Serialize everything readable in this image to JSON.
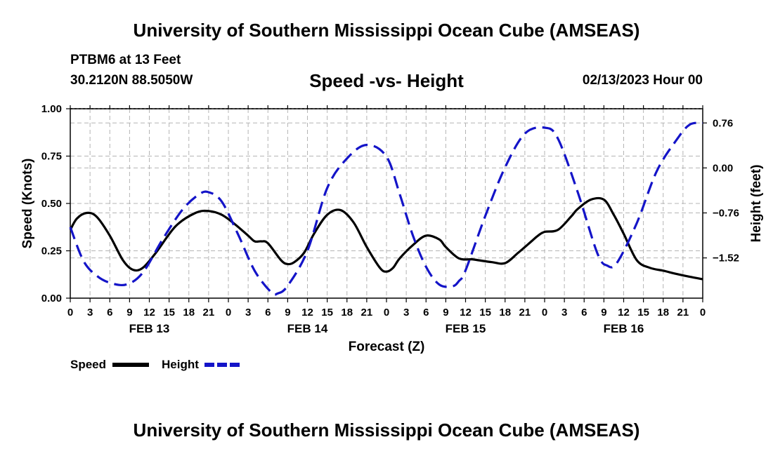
{
  "header": {
    "title": "University of Southern Mississippi Ocean Cube (AMSEAS)",
    "station": "PTBM6 at 13 Feet",
    "coordinates": "30.2120N  88.5050W",
    "chart_title": "Speed -vs- Height",
    "datetime": "02/13/2023 Hour 00"
  },
  "footer": {
    "title": "University of Southern Mississippi Ocean Cube (AMSEAS)"
  },
  "legend": {
    "speed_label": "Speed",
    "height_label": "Height"
  },
  "colors": {
    "speed": "#000000",
    "height": "#1414c8",
    "grid": "#b4b4b4"
  },
  "chart_data": {
    "type": "line",
    "title": "Speed -vs- Height",
    "xlabel": "Forecast (Z)",
    "ylabel_left": "Speed (Knots)",
    "ylabel_right": "Height (feet)",
    "x_range_hours": [
      0,
      96
    ],
    "x_ticks": [
      "0",
      "3",
      "6",
      "9",
      "12",
      "15",
      "18",
      "21",
      "0",
      "3",
      "6",
      "9",
      "12",
      "15",
      "18",
      "21",
      "0",
      "3",
      "6",
      "9",
      "12",
      "15",
      "18",
      "21",
      "0",
      "3",
      "6",
      "9",
      "12",
      "15",
      "18",
      "21",
      "0"
    ],
    "day_labels": [
      {
        "label": "FEB 13",
        "hour": 12
      },
      {
        "label": "FEB 14",
        "hour": 36
      },
      {
        "label": "FEB 15",
        "hour": 60
      },
      {
        "label": "FEB 16",
        "hour": 84
      }
    ],
    "ylim_left": [
      0,
      1.0
    ],
    "yticks_left": [
      "0.00",
      "0.25",
      "0.50",
      "0.75",
      "1.00"
    ],
    "yticks_left_values": [
      0,
      0.25,
      0.5,
      0.75,
      1.0
    ],
    "ylim_right": [
      -2.2,
      1.0
    ],
    "yticks_right": [
      "−1.52",
      "−0.76",
      "0.00",
      "0.76"
    ],
    "yticks_right_values": [
      -1.52,
      -0.76,
      0.0,
      0.76
    ],
    "series": [
      {
        "name": "Speed",
        "axis": "left",
        "style": "solid",
        "x": [
          0,
          1,
          2.5,
          4,
          6,
          8,
          9.5,
          11,
          13,
          16,
          19,
          21,
          23,
          25,
          27,
          28,
          29,
          30,
          32,
          33,
          34,
          35.5,
          37,
          39,
          41,
          43,
          45,
          47,
          48,
          49,
          50,
          52,
          54,
          56,
          57,
          59,
          61,
          62,
          64,
          66,
          68,
          70,
          71,
          72,
          74,
          76,
          77,
          79,
          81,
          82.5,
          84,
          86,
          88,
          90,
          92,
          94,
          96
        ],
        "values": [
          0.36,
          0.42,
          0.45,
          0.43,
          0.33,
          0.2,
          0.15,
          0.16,
          0.24,
          0.38,
          0.45,
          0.46,
          0.44,
          0.39,
          0.33,
          0.3,
          0.3,
          0.29,
          0.2,
          0.18,
          0.19,
          0.24,
          0.34,
          0.44,
          0.465,
          0.4,
          0.27,
          0.16,
          0.14,
          0.16,
          0.21,
          0.28,
          0.33,
          0.31,
          0.27,
          0.21,
          0.205,
          0.2,
          0.19,
          0.185,
          0.24,
          0.3,
          0.33,
          0.35,
          0.36,
          0.43,
          0.47,
          0.52,
          0.52,
          0.44,
          0.34,
          0.2,
          0.16,
          0.145,
          0.128,
          0.113,
          0.1
        ]
      },
      {
        "name": "Height",
        "axis": "right",
        "style": "dashed",
        "x": [
          0,
          2,
          4,
          6,
          8.5,
          11,
          14,
          17,
          19.5,
          21,
          23,
          25.5,
          28,
          30.5,
          31.5,
          33,
          36,
          39,
          42,
          45,
          48,
          50,
          52,
          54,
          56,
          58,
          59,
          60,
          63,
          66,
          69,
          72,
          74,
          77,
          80,
          81.5,
          83,
          86,
          89,
          92,
          94,
          96
        ],
        "values": [
          -1.0,
          -1.57,
          -1.82,
          -1.94,
          -1.97,
          -1.77,
          -1.21,
          -0.71,
          -0.45,
          -0.41,
          -0.57,
          -1.13,
          -1.74,
          -2.1,
          -2.12,
          -1.99,
          -1.4,
          -0.34,
          0.16,
          0.39,
          0.19,
          -0.44,
          -1.14,
          -1.67,
          -1.97,
          -2.0,
          -1.91,
          -1.73,
          -0.81,
          0.01,
          0.58,
          0.68,
          0.5,
          -0.4,
          -1.44,
          -1.65,
          -1.6,
          -0.93,
          -0.06,
          0.47,
          0.73,
          0.76
        ]
      }
    ]
  }
}
